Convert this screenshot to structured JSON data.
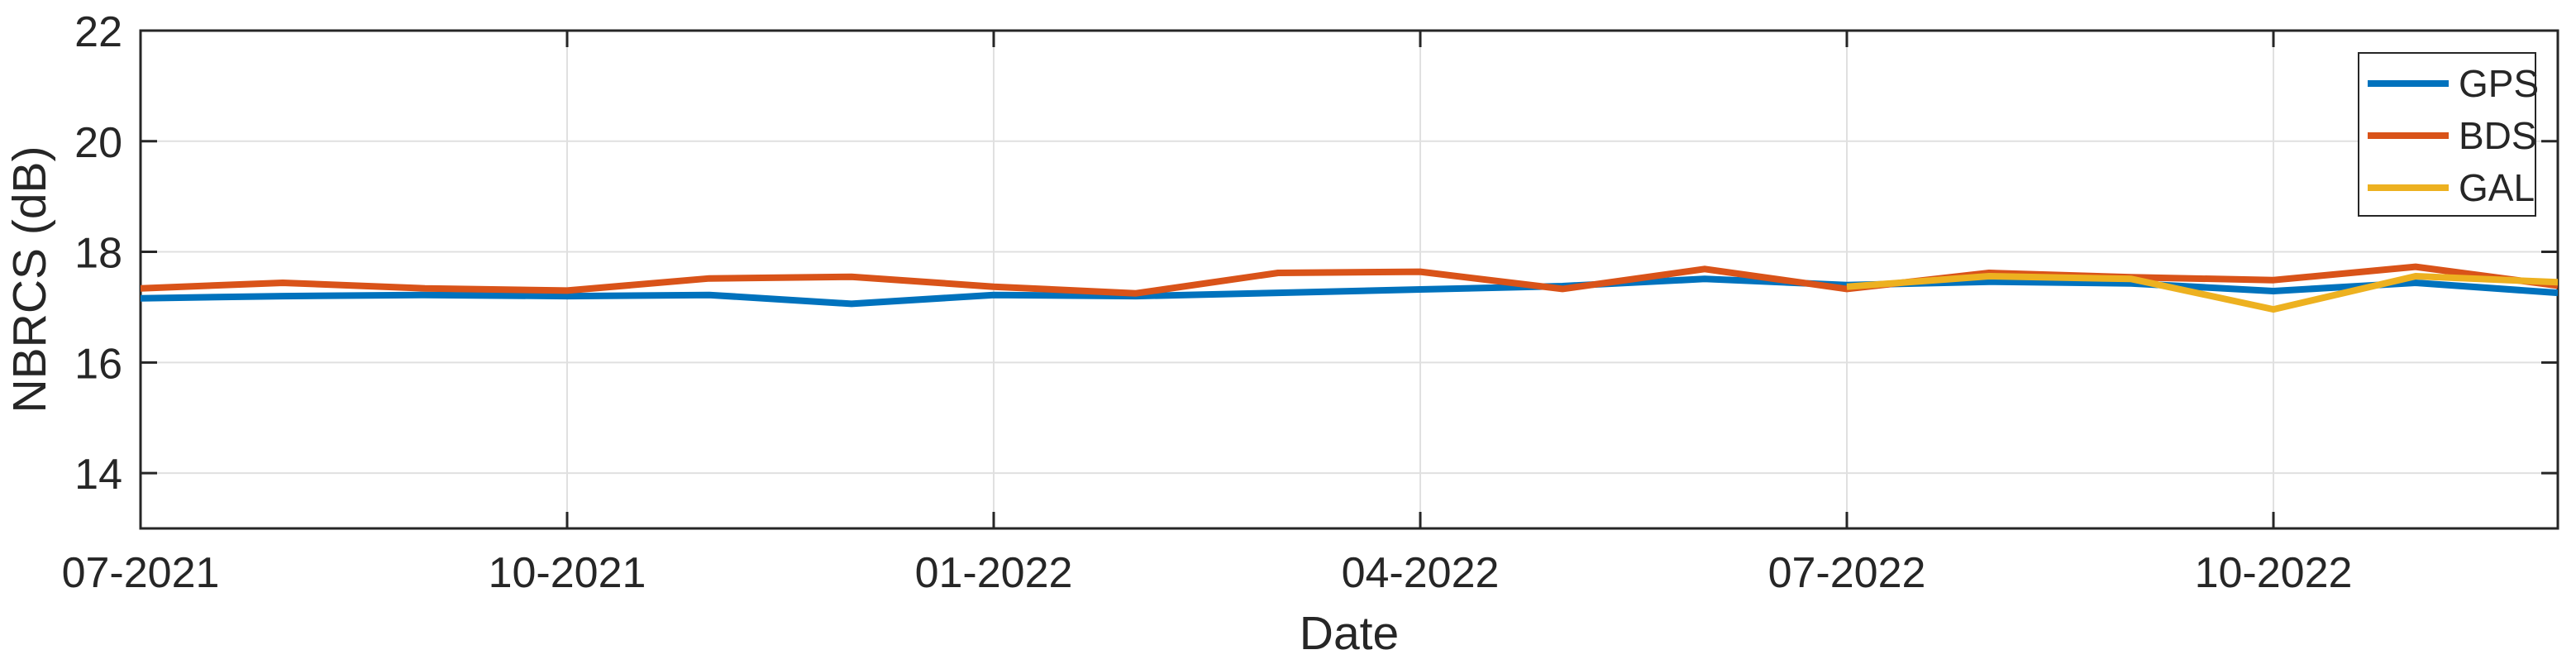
{
  "chart_data": {
    "type": "line",
    "title": "",
    "xlabel": "Date",
    "ylabel": "NBRCS (dB)",
    "categories": [
      "07-2021",
      "08-2021",
      "09-2021",
      "10-2021",
      "11-2021",
      "12-2021",
      "01-2022",
      "02-2022",
      "03-2022",
      "04-2022",
      "05-2022",
      "06-2022",
      "07-2022",
      "08-2022",
      "09-2022",
      "10-2022",
      "11-2022",
      "12-2022"
    ],
    "x_tick_indices": [
      0,
      3,
      6,
      9,
      12,
      15
    ],
    "x_tick_labels": [
      "07-2021",
      "10-2021",
      "01-2022",
      "04-2022",
      "07-2022",
      "10-2022"
    ],
    "ylim": [
      13,
      22
    ],
    "yticks": [
      14,
      16,
      18,
      20,
      22
    ],
    "grid": true,
    "legend_position": "top-right",
    "series": [
      {
        "name": "GPS",
        "color": "#0072BD",
        "values": [
          17.16,
          17.2,
          17.22,
          17.2,
          17.22,
          17.06,
          17.22,
          17.2,
          17.26,
          17.32,
          17.38,
          17.51,
          17.4,
          17.46,
          17.43,
          17.29,
          17.44,
          17.26
        ]
      },
      {
        "name": "BDS",
        "color": "#D95319",
        "values": [
          17.34,
          17.44,
          17.34,
          17.3,
          17.52,
          17.55,
          17.37,
          17.25,
          17.62,
          17.64,
          17.33,
          17.69,
          17.33,
          17.62,
          17.54,
          17.49,
          17.73,
          17.39
        ]
      },
      {
        "name": "GAL",
        "color": "#EDB120",
        "values": [
          null,
          null,
          null,
          null,
          null,
          null,
          null,
          null,
          null,
          null,
          null,
          null,
          17.37,
          17.56,
          17.51,
          16.96,
          17.56,
          17.45
        ]
      }
    ],
    "styles": {
      "background": "#ffffff",
      "axis_color": "#262626",
      "grid_color": "#e0e0e0",
      "text_color": "#262626",
      "line_width": 8
    }
  }
}
